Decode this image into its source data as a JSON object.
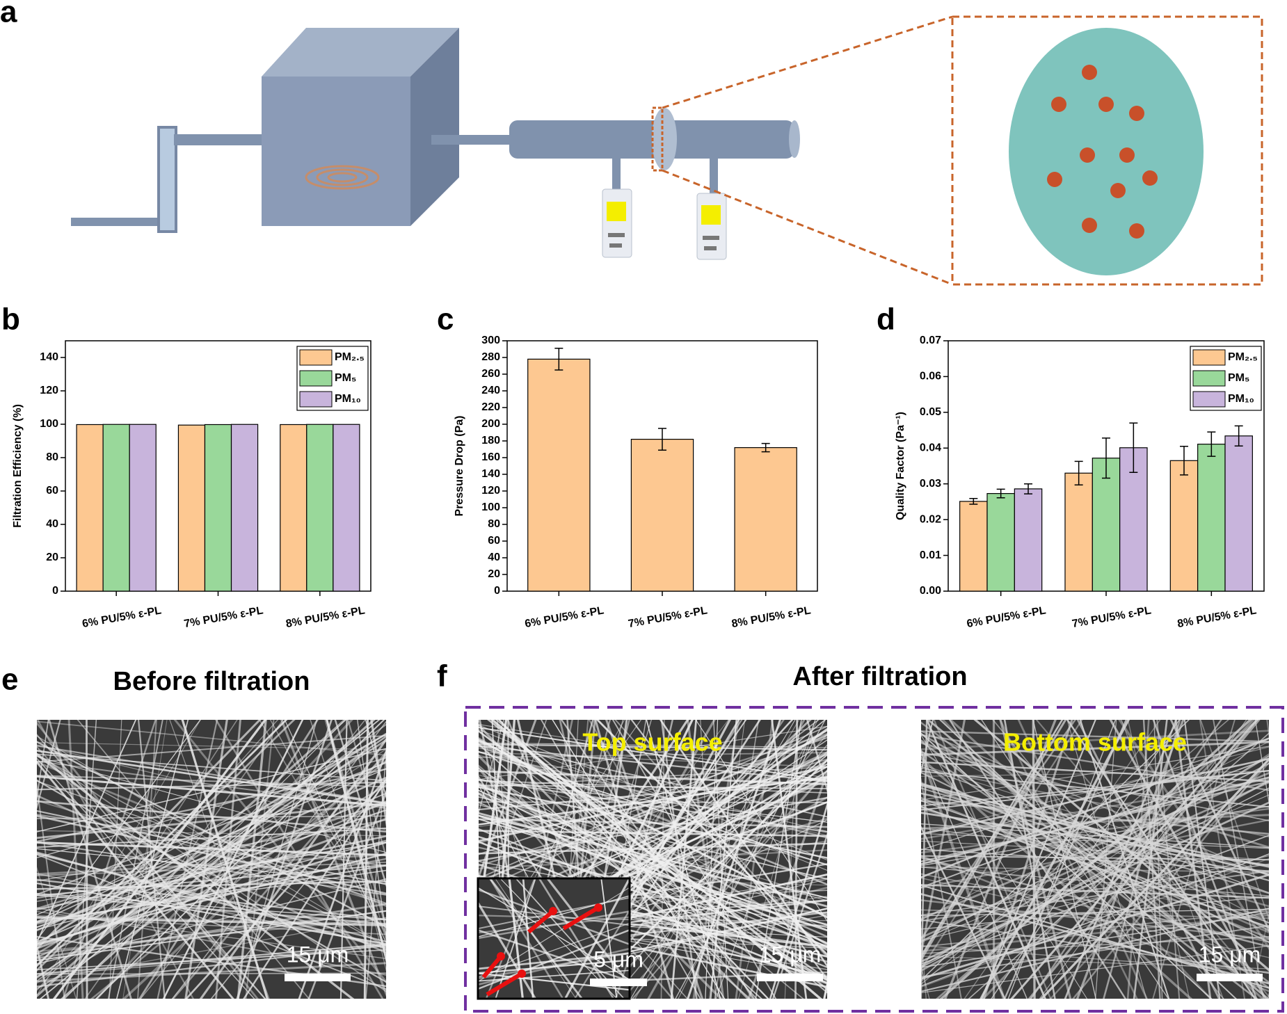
{
  "panel_labels": [
    "a",
    "b",
    "c",
    "d",
    "e",
    "f"
  ],
  "chart_data": [
    {
      "type": "bar",
      "ylabel": "Filtration Efficiency (%)",
      "categories": [
        "6% PU/5% ε-PL",
        "7% PU/5% ε-PL",
        "8% PU/5% ε-PL"
      ],
      "series": [
        {
          "name": "PM₂.₅",
          "color": "#fdc891",
          "values": [
            99.8,
            99.5,
            99.8
          ]
        },
        {
          "name": "PM₅",
          "color": "#99d89a",
          "values": [
            99.9,
            99.8,
            99.9
          ]
        },
        {
          "name": "PM₁₀",
          "color": "#c8b4dc",
          "values": [
            99.9,
            99.9,
            99.9
          ]
        }
      ],
      "ylim": [
        0,
        150
      ],
      "yticks": [
        0,
        20,
        40,
        60,
        80,
        100,
        120,
        140
      ],
      "legend": "upper right"
    },
    {
      "type": "bar",
      "ylabel": "Pressure Drop (Pa)",
      "categories": [
        "6% PU/5% ε-PL",
        "7% PU/5% ε-PL",
        "8% PU/5% ε-PL"
      ],
      "values": [
        278,
        182,
        172
      ],
      "errors": [
        13,
        13,
        5
      ],
      "color": "#fdc891",
      "ylim": [
        0,
        300
      ],
      "yticks": [
        0,
        20,
        40,
        60,
        80,
        100,
        120,
        140,
        160,
        180,
        200,
        220,
        240,
        260,
        280,
        300
      ]
    },
    {
      "type": "bar",
      "ylabel": "Quality Factor (Pa⁻¹)",
      "categories": [
        "6% PU/5% ε-PL",
        "7% PU/5% ε-PL",
        "8% PU/5% ε-PL"
      ],
      "series": [
        {
          "name": "PM₂.₅",
          "color": "#fdc891",
          "values": [
            0.0251,
            0.033,
            0.0365
          ],
          "errors": [
            0.0008,
            0.0033,
            0.004
          ]
        },
        {
          "name": "PM₅",
          "color": "#99d89a",
          "values": [
            0.0273,
            0.0372,
            0.0411
          ],
          "errors": [
            0.0012,
            0.0056,
            0.0034
          ]
        },
        {
          "name": "PM₁₀",
          "color": "#c8b4dc",
          "values": [
            0.0286,
            0.0401,
            0.0434
          ],
          "errors": [
            0.0014,
            0.0069,
            0.0028
          ]
        }
      ],
      "ylim": [
        0,
        0.07
      ],
      "yticks": [
        {
          "value": 0,
          "label": "0.00"
        },
        {
          "value": 0.01,
          "label": "0.01"
        },
        {
          "value": 0.02,
          "label": "0.02"
        },
        {
          "value": 0.03,
          "label": "0.03"
        },
        {
          "value": 0.04,
          "label": "0.04"
        },
        {
          "value": 0.05,
          "label": "0.05"
        },
        {
          "value": 0.06,
          "label": "0.06"
        },
        {
          "value": 0.07,
          "label": "0.07"
        }
      ],
      "legend": "upper right"
    }
  ],
  "micrographs": {
    "before_title": "Before filtration",
    "after_title": "After filtration",
    "top_label": "Top surface",
    "bottom_label": "Bottom surface",
    "scale_bars": [
      "15 μm",
      "5 μm",
      "15 μm",
      "15 μm"
    ]
  }
}
